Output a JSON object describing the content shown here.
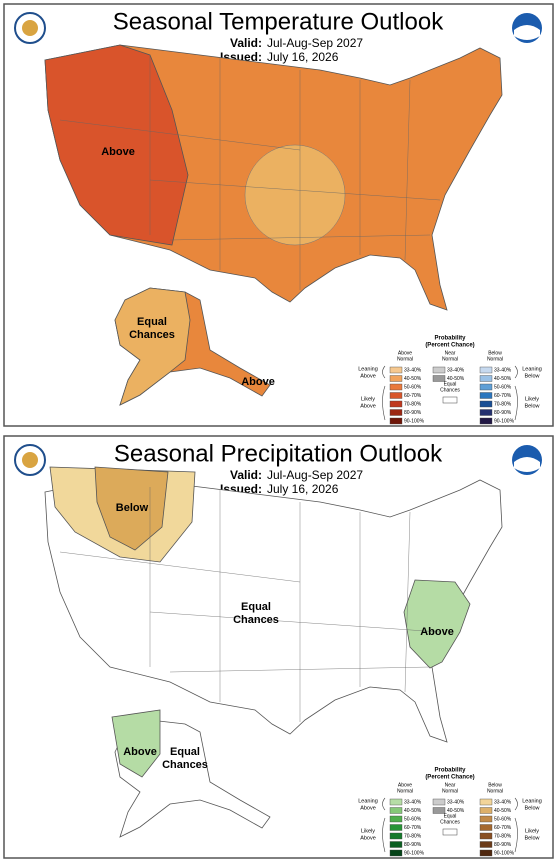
{
  "panels": [
    {
      "title": "Seasonal Temperature Outlook",
      "valid_label": "Valid:",
      "valid_period": "Jul-Aug-Sep 2027",
      "issued_label": "Issued:",
      "issued_date": "July 16, 2026",
      "map_labels": [
        {
          "lines": [
            "Above"
          ]
        },
        {
          "lines": [
            "Equal",
            "Chances"
          ]
        },
        {
          "lines": [
            "Above"
          ]
        }
      ],
      "legend": {
        "title": [
          "Probability",
          "(Percent Chance)"
        ],
        "above": [
          "Above",
          "Normal"
        ],
        "near": [
          "Near",
          "Normal"
        ],
        "below": [
          "Below",
          "Normal"
        ],
        "leaning_above": [
          "Leaning",
          "Above"
        ],
        "likely_above": [
          "Likely",
          "Above"
        ],
        "leaning_below": [
          "Leaning",
          "Below"
        ],
        "likely_below": [
          "Likely",
          "Below"
        ],
        "equal_chances": [
          "Equal",
          "Chances"
        ],
        "bins": [
          "33-40%",
          "40-50%",
          "50-60%",
          "60-70%",
          "70-80%",
          "80-90%",
          "90-100%"
        ],
        "near_bins": [
          "33-40%",
          "40-50%"
        ],
        "above_colors": [
          "#f6c88f",
          "#f1a35c",
          "#e9793c",
          "#d8552a",
          "#c0391f",
          "#9c2712",
          "#6e1507"
        ],
        "near_colors": [
          "#cccccc",
          "#999999"
        ],
        "below_colors": [
          "#c6d9ef",
          "#9ac1e6",
          "#5e9fd6",
          "#2b76be",
          "#1a4f95",
          "#24306f",
          "#211845"
        ]
      }
    },
    {
      "title": "Seasonal Precipitation Outlook",
      "valid_label": "Valid:",
      "valid_period": "Jul-Aug-Sep 2027",
      "issued_label": "Issued:",
      "issued_date": "July 16, 2026",
      "map_labels": [
        {
          "lines": [
            "Below"
          ]
        },
        {
          "lines": [
            "Equal",
            "Chances"
          ]
        },
        {
          "lines": [
            "Above"
          ]
        },
        {
          "lines": [
            "Above"
          ]
        },
        {
          "lines": [
            "Equal",
            "Chances"
          ]
        }
      ],
      "legend": {
        "title": [
          "Probability",
          "(Percent Chance)"
        ],
        "above": [
          "Above",
          "Normal"
        ],
        "near": [
          "Near",
          "Normal"
        ],
        "below": [
          "Below",
          "Normal"
        ],
        "leaning_above": [
          "Leaning",
          "Above"
        ],
        "likely_above": [
          "Likely",
          "Above"
        ],
        "leaning_below": [
          "Leaning",
          "Below"
        ],
        "likely_below": [
          "Likely",
          "Below"
        ],
        "equal_chances": [
          "Equal",
          "Chances"
        ],
        "bins": [
          "33-40%",
          "40-50%",
          "50-60%",
          "60-70%",
          "70-80%",
          "80-90%",
          "90-100%"
        ],
        "near_bins": [
          "33-40%",
          "40-50%"
        ],
        "above_colors": [
          "#b6dda6",
          "#86c878",
          "#4fae4c",
          "#279436",
          "#157a2b",
          "#0b5f21",
          "#044317"
        ],
        "near_colors": [
          "#cccccc",
          "#999999"
        ],
        "below_colors": [
          "#f2d59a",
          "#ddb06a",
          "#c28a48",
          "#a5682e",
          "#894f22",
          "#6b3a18",
          "#4f270e"
        ]
      }
    }
  ]
}
